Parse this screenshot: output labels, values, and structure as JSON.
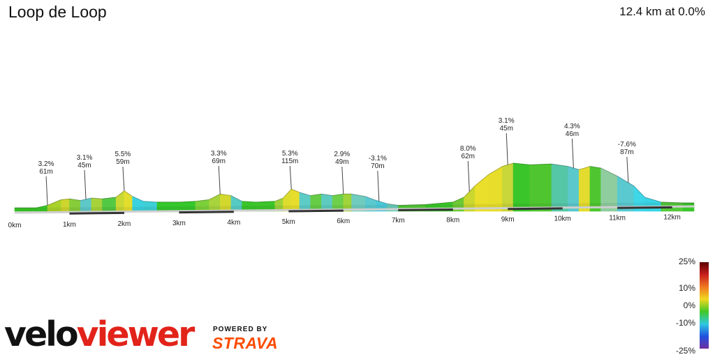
{
  "header": {
    "title": "Loop de Loop",
    "summary": "12.4 km at 0.0%"
  },
  "branding": {
    "velo": "velo",
    "viewer": "viewer",
    "powered_by": "POWERED BY",
    "strava": "STRAVA",
    "colors": {
      "velo": "#111111",
      "viewer": "#e2231a",
      "strava": "#fc4c02"
    }
  },
  "chart_data": {
    "type": "area",
    "xlabel": "",
    "ylabel": "",
    "xlim": [
      0,
      12.4
    ],
    "ylim": [
      40,
      125
    ],
    "x_ticks": [
      {
        "value": 0,
        "label": "0km"
      },
      {
        "value": 1,
        "label": "1km"
      },
      {
        "value": 2,
        "label": "2km"
      },
      {
        "value": 3,
        "label": "3km"
      },
      {
        "value": 4,
        "label": "4km"
      },
      {
        "value": 5,
        "label": "5km"
      },
      {
        "value": 6,
        "label": "6km"
      },
      {
        "value": 7,
        "label": "7km"
      },
      {
        "value": 8,
        "label": "8km"
      },
      {
        "value": 9,
        "label": "9km"
      },
      {
        "value": 10,
        "label": "10km"
      },
      {
        "value": 11,
        "label": "11km"
      },
      {
        "value": 12,
        "label": "12km"
      }
    ],
    "profile": [
      [
        0.0,
        45
      ],
      [
        0.4,
        45
      ],
      [
        0.6,
        48
      ],
      [
        0.85,
        55
      ],
      [
        1.0,
        56
      ],
      [
        1.2,
        54
      ],
      [
        1.4,
        57
      ],
      [
        1.6,
        56
      ],
      [
        1.85,
        58
      ],
      [
        2.0,
        66
      ],
      [
        2.15,
        59
      ],
      [
        2.35,
        53
      ],
      [
        2.6,
        52
      ],
      [
        3.0,
        52
      ],
      [
        3.3,
        53
      ],
      [
        3.55,
        55
      ],
      [
        3.75,
        62
      ],
      [
        3.95,
        60
      ],
      [
        4.15,
        53
      ],
      [
        4.4,
        52
      ],
      [
        4.75,
        53
      ],
      [
        4.9,
        57
      ],
      [
        5.05,
        68
      ],
      [
        5.2,
        64
      ],
      [
        5.4,
        60
      ],
      [
        5.6,
        62
      ],
      [
        5.8,
        60
      ],
      [
        6.0,
        62
      ],
      [
        6.15,
        62
      ],
      [
        6.4,
        59
      ],
      [
        6.6,
        54
      ],
      [
        6.8,
        50
      ],
      [
        7.0,
        48
      ],
      [
        7.5,
        49
      ],
      [
        8.0,
        52
      ],
      [
        8.2,
        58
      ],
      [
        8.4,
        72
      ],
      [
        8.65,
        86
      ],
      [
        8.9,
        96
      ],
      [
        9.1,
        100
      ],
      [
        9.4,
        98
      ],
      [
        9.8,
        99
      ],
      [
        10.1,
        96
      ],
      [
        10.3,
        92
      ],
      [
        10.5,
        96
      ],
      [
        10.7,
        94
      ],
      [
        11.0,
        84
      ],
      [
        11.3,
        72
      ],
      [
        11.5,
        58
      ],
      [
        11.8,
        52
      ],
      [
        12.2,
        51
      ],
      [
        12.4,
        51
      ]
    ],
    "segment_colors": [
      "#3ac628",
      "#3ac628",
      "#a9d32a",
      "#cdd52e",
      "#86cd3a",
      "#5ec8c8",
      "#a6d33a",
      "#53c844",
      "#c9d934",
      "#e3de2e",
      "#3bd2e0",
      "#3ed0d6",
      "#35c72c",
      "#35c72c",
      "#7cd13a",
      "#a7d43c",
      "#d3d82f",
      "#56cbc4",
      "#3ac62a",
      "#3cc62a",
      "#9fd23a",
      "#dedd2e",
      "#e7dd2d",
      "#5dcbc6",
      "#66cc46",
      "#5ecbc0",
      "#6dd04a",
      "#9fd43a",
      "#70ccbf",
      "#5bcad0",
      "#4bc9d8",
      "#6bcdb8",
      "#52c836",
      "#3ac62a",
      "#6dc935",
      "#c9d72e",
      "#eadf2a",
      "#e7de2b",
      "#c8d63a",
      "#3ac62a",
      "#4fc62f",
      "#55c6a6",
      "#5bc8cc",
      "#e3dc2e",
      "#4fc62f",
      "#8fcd9f",
      "#5ac9d0",
      "#3ed7e8",
      "#39d5e5",
      "#54c93a",
      "#3ac62a"
    ],
    "annotations": [
      {
        "x": 0.6,
        "grade": "3.2%",
        "elev": "61m"
      },
      {
        "x": 1.3,
        "grade": "3.1%",
        "elev": "45m"
      },
      {
        "x": 2.0,
        "grade": "5.5%",
        "elev": "59m"
      },
      {
        "x": 3.75,
        "grade": "3.3%",
        "elev": "69m"
      },
      {
        "x": 5.05,
        "grade": "5.3%",
        "elev": "115m"
      },
      {
        "x": 6.0,
        "grade": "2.9%",
        "elev": "49m"
      },
      {
        "x": 6.65,
        "grade": "-3.1%",
        "elev": "70m"
      },
      {
        "x": 8.3,
        "grade": "8.0%",
        "elev": "62m"
      },
      {
        "x": 9.0,
        "grade": "3.1%",
        "elev": "45m"
      },
      {
        "x": 10.2,
        "grade": "4.3%",
        "elev": "46m"
      },
      {
        "x": 11.2,
        "grade": "-7.6%",
        "elev": "87m"
      }
    ],
    "legend": {
      "title": "",
      "stops": [
        {
          "value": 25,
          "label": "25%"
        },
        {
          "value": 10,
          "label": "10%"
        },
        {
          "value": 0,
          "label": "0%"
        },
        {
          "value": -10,
          "label": "-10%"
        },
        {
          "value": -25,
          "label": "-25%"
        }
      ],
      "gradient_colors": [
        "#5a0000",
        "#c81e1e",
        "#f07820",
        "#f0d820",
        "#40c828",
        "#30c8e0",
        "#2050e0",
        "#7030a0"
      ]
    }
  }
}
